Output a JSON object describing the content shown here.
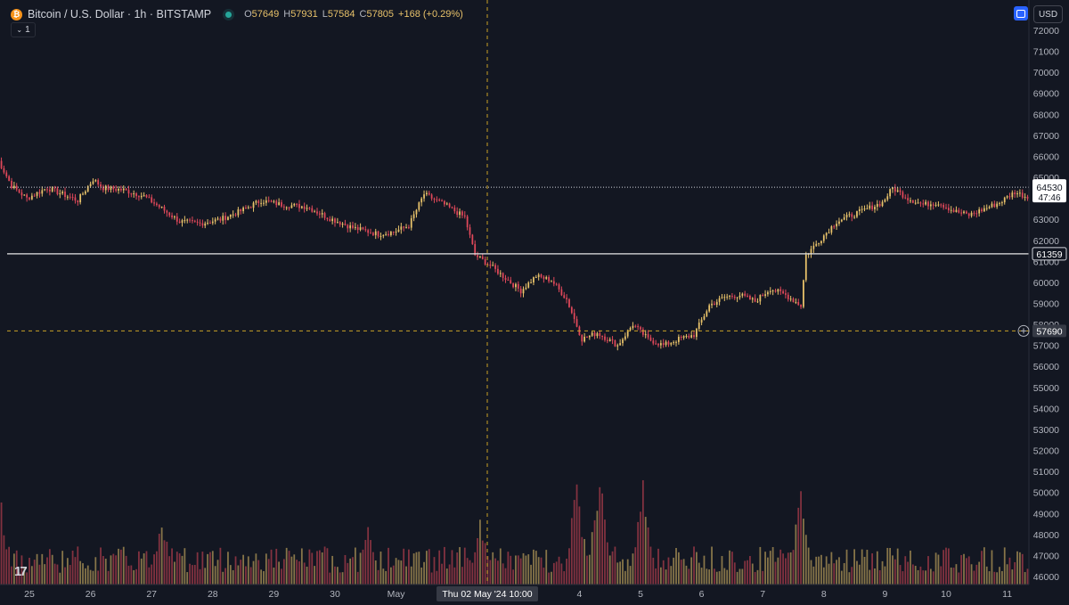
{
  "header": {
    "symbol_title": "Bitcoin / U.S. Dollar · 1h · BITSTAMP",
    "coin_icon": "bitcoin-icon",
    "ohlc": {
      "o_label": "O",
      "o": "57649",
      "h_label": "H",
      "h": "57931",
      "l_label": "L",
      "l": "57584",
      "c_label": "C",
      "c": "57805",
      "change": "+168 (+0.29%)"
    },
    "collapse_label": "1"
  },
  "toolbar": {
    "currency": "USD"
  },
  "colors": {
    "background": "#131722",
    "up": "#e8c26a",
    "down": "#e0485a",
    "crosshair": "#c9a227",
    "grid": "#1e222d"
  },
  "chart_data": {
    "type": "candlestick",
    "title": "Bitcoin / U.S. Dollar · 1h · BITSTAMP",
    "ylim": [
      45500,
      72500
    ],
    "y_ticks": [
      46000,
      47000,
      48000,
      49000,
      50000,
      51000,
      52000,
      53000,
      54000,
      55000,
      56000,
      57000,
      58000,
      59000,
      60000,
      61000,
      62000,
      63000,
      64000,
      65000,
      66000,
      67000,
      68000,
      69000,
      70000,
      71000,
      72000
    ],
    "x_ticks": [
      {
        "label": "25",
        "day": 0
      },
      {
        "label": "26",
        "day": 1
      },
      {
        "label": "27",
        "day": 2
      },
      {
        "label": "28",
        "day": 3
      },
      {
        "label": "29",
        "day": 4
      },
      {
        "label": "30",
        "day": 5
      },
      {
        "label": "May",
        "day": 6
      },
      {
        "label": "4",
        "day": 9
      },
      {
        "label": "5",
        "day": 10
      },
      {
        "label": "6",
        "day": 11
      },
      {
        "label": "7",
        "day": 12
      },
      {
        "label": "8",
        "day": 13
      },
      {
        "label": "9",
        "day": 14
      },
      {
        "label": "10",
        "day": 15
      },
      {
        "label": "11",
        "day": 16
      }
    ],
    "x_day0_hours_before_tick": 13,
    "close_path": [
      [
        0,
        66000
      ],
      [
        6,
        64600
      ],
      [
        12,
        64000
      ],
      [
        20,
        64500
      ],
      [
        26,
        64200
      ],
      [
        32,
        63900
      ],
      [
        38,
        64900
      ],
      [
        42,
        64500
      ],
      [
        50,
        64400
      ],
      [
        58,
        64100
      ],
      [
        64,
        63600
      ],
      [
        72,
        62900
      ],
      [
        80,
        62800
      ],
      [
        88,
        63000
      ],
      [
        96,
        63400
      ],
      [
        104,
        63900
      ],
      [
        112,
        63700
      ],
      [
        122,
        63600
      ],
      [
        130,
        63100
      ],
      [
        140,
        62600
      ],
      [
        150,
        62300
      ],
      [
        156,
        62400
      ],
      [
        162,
        62700
      ],
      [
        168,
        64200
      ],
      [
        176,
        63700
      ],
      [
        184,
        63100
      ],
      [
        188,
        61300
      ],
      [
        194,
        60800
      ],
      [
        200,
        60200
      ],
      [
        206,
        59600
      ],
      [
        212,
        60300
      ],
      [
        218,
        60100
      ],
      [
        224,
        59200
      ],
      [
        230,
        57300
      ],
      [
        236,
        57600
      ],
      [
        244,
        57000
      ],
      [
        250,
        58000
      ],
      [
        256,
        57300
      ],
      [
        262,
        57000
      ],
      [
        268,
        57300
      ],
      [
        274,
        57500
      ],
      [
        280,
        58900
      ],
      [
        286,
        59300
      ],
      [
        292,
        59400
      ],
      [
        298,
        59100
      ],
      [
        304,
        59700
      ],
      [
        310,
        59400
      ],
      [
        316,
        58900
      ],
      [
        318,
        61300
      ],
      [
        324,
        62100
      ],
      [
        330,
        62900
      ],
      [
        336,
        63200
      ],
      [
        342,
        63500
      ],
      [
        348,
        63800
      ],
      [
        352,
        64500
      ],
      [
        358,
        64000
      ],
      [
        364,
        63700
      ],
      [
        370,
        63800
      ],
      [
        376,
        63400
      ],
      [
        382,
        63200
      ],
      [
        388,
        63500
      ],
      [
        394,
        63800
      ],
      [
        400,
        64300
      ],
      [
        406,
        64000
      ],
      [
        412,
        63800
      ],
      [
        418,
        64100
      ],
      [
        422,
        64500
      ]
    ],
    "volume_peaks": [
      {
        "hour": 0,
        "value": 1.0
      },
      {
        "hour": 65,
        "value": 0.48
      },
      {
        "hour": 146,
        "value": 0.4
      },
      {
        "hour": 190,
        "value": 0.45
      },
      {
        "hour": 228,
        "value": 0.72
      },
      {
        "hour": 237,
        "value": 0.85
      },
      {
        "hour": 254,
        "value": 0.75
      },
      {
        "hour": 316,
        "value": 0.68
      }
    ],
    "current_price": "64530",
    "countdown": "47:46",
    "horizontal_line": "61359",
    "crosshair": {
      "price": "57690",
      "time": "Thu 02 May '24   10:00"
    }
  }
}
